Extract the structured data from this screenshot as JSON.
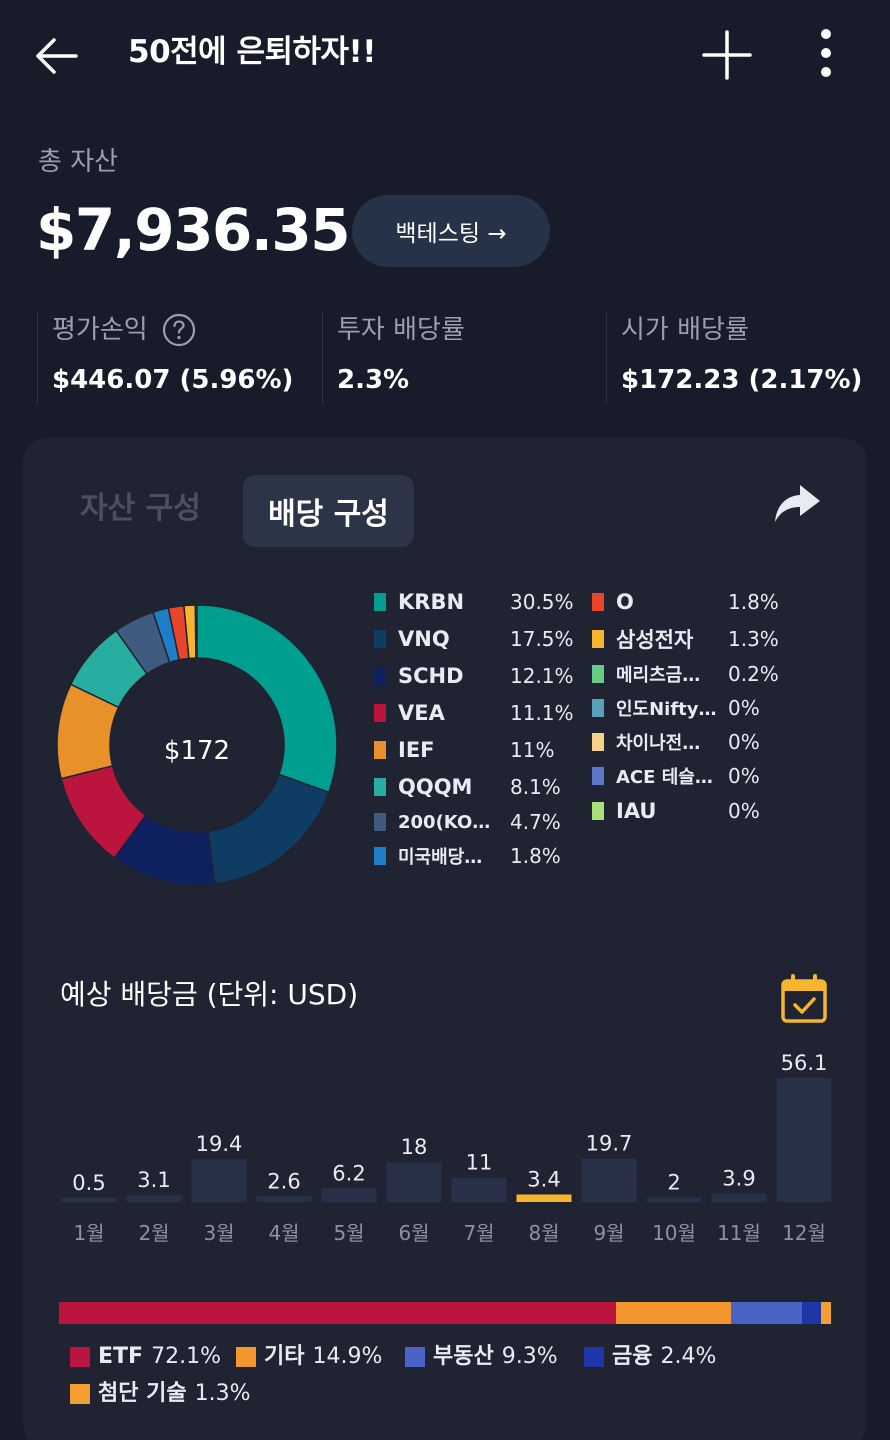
{
  "header": {
    "title": "50전에 은퇴하자!!",
    "back_icon": "arrow-left-icon",
    "add_icon": "plus-icon",
    "more_icon": "more-vertical-icon"
  },
  "summary": {
    "total_label": "총 자산",
    "total_value": "$7,936.35",
    "backtest_label": "백테스팅 →",
    "stats": [
      {
        "label": "평가손익",
        "value": "$446.07 (5.96%)"
      },
      {
        "label": "투자 배당률",
        "value": "2.3%"
      },
      {
        "label": "시가 배당률",
        "value": "$172.23 (2.17%)"
      }
    ]
  },
  "tabs": [
    {
      "label": "자산 구성",
      "active": false
    },
    {
      "label": "배당 구성",
      "active": true
    }
  ],
  "donut": {
    "center_label": "$172",
    "items": [
      {
        "name": "KRBN",
        "percent": "30.5%",
        "value": 30.5,
        "color": "#009e8f"
      },
      {
        "name": "VNQ",
        "percent": "17.5%",
        "value": 17.5,
        "color": "#0e3c63"
      },
      {
        "name": "SCHD",
        "percent": "12.1%",
        "value": 12.1,
        "color": "#0f2060"
      },
      {
        "name": "VEA",
        "percent": "11.1%",
        "value": 11.1,
        "color": "#bb143e"
      },
      {
        "name": "IEF",
        "percent": "11%",
        "value": 11.0,
        "color": "#e8902a"
      },
      {
        "name": "QQQM",
        "percent": "8.1%",
        "value": 8.1,
        "color": "#27aea0"
      },
      {
        "name": "200(KO…",
        "percent": "4.7%",
        "value": 4.7,
        "color": "#3f5c80"
      },
      {
        "name": "미국배당…",
        "percent": "1.8%",
        "value": 1.8,
        "color": "#1e7fc8"
      },
      {
        "name": "O",
        "percent": "1.8%",
        "value": 1.8,
        "color": "#e8462a"
      },
      {
        "name": "삼성전자",
        "percent": "1.3%",
        "value": 1.3,
        "color": "#f5b52c"
      },
      {
        "name": "메리츠금…",
        "percent": "0.2%",
        "value": 0.2,
        "color": "#66cc88"
      },
      {
        "name": "인도Nifty…",
        "percent": "0%",
        "value": 0,
        "color": "#5aa0b8"
      },
      {
        "name": "차이나전…",
        "percent": "0%",
        "value": 0,
        "color": "#f5d08a"
      },
      {
        "name": "ACE 테슬…",
        "percent": "0%",
        "value": 0,
        "color": "#5c78c8"
      },
      {
        "name": "IAU",
        "percent": "0%",
        "value": 0,
        "color": "#a8e07a"
      }
    ]
  },
  "expected": {
    "title": "예상 배당금 (단위: USD)",
    "calendar_icon": "calendar-check-icon"
  },
  "chart_data": {
    "type": "bar",
    "categories": [
      "1월",
      "2월",
      "3월",
      "4월",
      "5월",
      "6월",
      "7월",
      "8월",
      "9월",
      "10월",
      "11월",
      "12월"
    ],
    "values": [
      0.5,
      3.1,
      19.4,
      2.6,
      6.2,
      18,
      11,
      3.4,
      19.7,
      2,
      3.9,
      56.1
    ],
    "value_labels": [
      "0.5",
      "3.1",
      "19.4",
      "2.6",
      "6.2",
      "18",
      "11",
      "3.4",
      "19.7",
      "2",
      "3.9",
      "56.1"
    ],
    "highlight_index": 7,
    "bar_color": "#283048",
    "highlight_color": "#f5b52c"
  },
  "categories": [
    {
      "name": "ETF",
      "percent": "72.1%",
      "value": 72.1,
      "color": "#bb143e"
    },
    {
      "name": "기타",
      "percent": "14.9%",
      "value": 14.9,
      "color": "#f4952e"
    },
    {
      "name": "부동산",
      "percent": "9.3%",
      "value": 9.3,
      "color": "#4a63c6"
    },
    {
      "name": "금융",
      "percent": "2.4%",
      "value": 2.4,
      "color": "#1e36a8"
    },
    {
      "name": "첨단 기술",
      "percent": "1.3%",
      "value": 1.3,
      "color": "#f29e30"
    }
  ]
}
